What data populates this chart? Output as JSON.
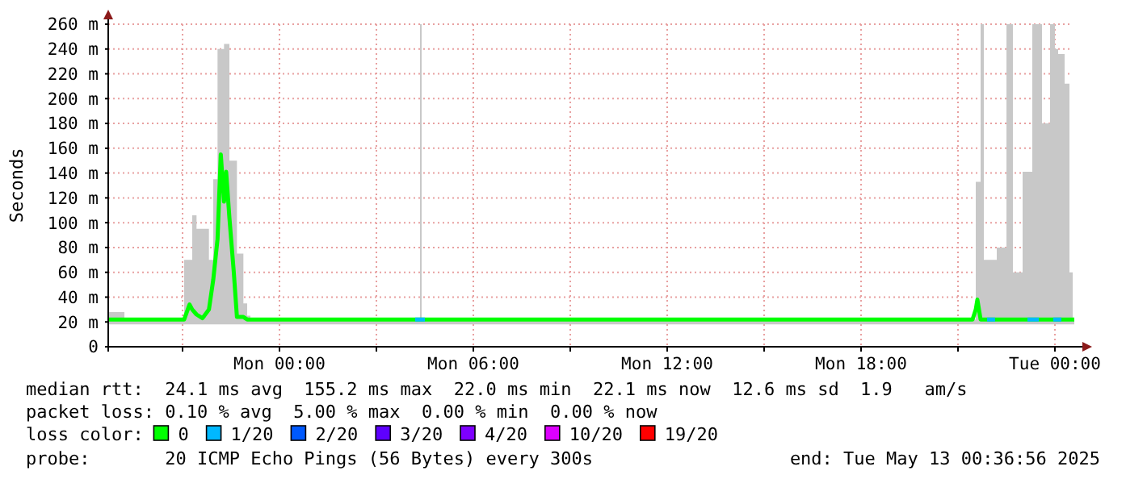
{
  "chart_data": {
    "type": "line",
    "ylabel": "Seconds",
    "xlim": [
      "2025-05-11T18:42",
      "2025-05-13T00:51"
    ],
    "ylim": [
      0,
      260
    ],
    "xticks": [
      {
        "value": "2025-05-11T21:00",
        "label": null
      },
      {
        "value": "2025-05-12T00:00",
        "label": "Mon 00:00"
      },
      {
        "value": "2025-05-12T03:00",
        "label": null
      },
      {
        "value": "2025-05-12T06:00",
        "label": "Mon 06:00"
      },
      {
        "value": "2025-05-12T09:00",
        "label": null
      },
      {
        "value": "2025-05-12T12:00",
        "label": "Mon 12:00"
      },
      {
        "value": "2025-05-12T15:00",
        "label": null
      },
      {
        "value": "2025-05-12T18:00",
        "label": "Mon 18:00"
      },
      {
        "value": "2025-05-12T21:00",
        "label": null
      },
      {
        "value": "2025-05-13T00:00",
        "label": "Tue 00:00"
      }
    ],
    "yticks": [
      {
        "value": 0,
        "label": "0"
      },
      {
        "value": 20,
        "label": "20 m"
      },
      {
        "value": 40,
        "label": "40 m"
      },
      {
        "value": 60,
        "label": "60 m"
      },
      {
        "value": 80,
        "label": "80 m"
      },
      {
        "value": 100,
        "label": "100 m"
      },
      {
        "value": 120,
        "label": "120 m"
      },
      {
        "value": 140,
        "label": "140 m"
      },
      {
        "value": 160,
        "label": "160 m"
      },
      {
        "value": 180,
        "label": "180 m"
      },
      {
        "value": 200,
        "label": "200 m"
      },
      {
        "value": 220,
        "label": "220 m"
      },
      {
        "value": 240,
        "label": "240 m"
      },
      {
        "value": 260,
        "label": "260 m"
      }
    ],
    "grid": true,
    "legend": "bottom",
    "legend_title": "loss color:",
    "series": [
      {
        "name": "0",
        "color": "#00ff00",
        "x": [
          "2025-05-11T18:42",
          "2025-05-11T19:12",
          "2025-05-11T21:00",
          "2025-05-11T21:03",
          "2025-05-11T21:13",
          "2025-05-11T21:18",
          "2025-05-11T21:26",
          "2025-05-11T21:37",
          "2025-05-11T21:49",
          "2025-05-11T21:57",
          "2025-05-11T22:05",
          "2025-05-11T22:11",
          "2025-05-11T22:17",
          "2025-05-11T22:21",
          "2025-05-11T22:27",
          "2025-05-11T22:35",
          "2025-05-11T22:41",
          "2025-05-11T22:53",
          "2025-05-11T23:00",
          "2025-05-11T23:06",
          "2025-05-12T04:18",
          "2025-05-12T04:21",
          "2025-05-12T04:24",
          "2025-05-12T21:27",
          "2025-05-12T21:33",
          "2025-05-12T21:36",
          "2025-05-12T21:42",
          "2025-05-12T21:48",
          "2025-05-12T22:12",
          "2025-05-12T22:30",
          "2025-05-12T22:42",
          "2025-05-12T23:00",
          "2025-05-12T23:18",
          "2025-05-12T23:36",
          "2025-05-12T23:51",
          "2025-05-13T00:00",
          "2025-05-13T00:06",
          "2025-05-13T00:18",
          "2025-05-13T00:27",
          "2025-05-13T00:33",
          "2025-05-13T00:36"
        ],
        "values": [
          22,
          22,
          22,
          22,
          34,
          30,
          26,
          23,
          30,
          54,
          87,
          155,
          117,
          141,
          104,
          61,
          24,
          24,
          22,
          22,
          22,
          22,
          22,
          22,
          30,
          38,
          22,
          22,
          22,
          22,
          22,
          22,
          22,
          22,
          22,
          22,
          22,
          22,
          22,
          22,
          22
        ],
        "upper": [
          28,
          22,
          22,
          70,
          70,
          106,
          95,
          95,
          70,
          135,
          240,
          240,
          244,
          244,
          150,
          150,
          75,
          35,
          25,
          22,
          22,
          260,
          22,
          22,
          133,
          133,
          260,
          70,
          80,
          260,
          60,
          141,
          260,
          180,
          260,
          240,
          236,
          212,
          60,
          22,
          22
        ],
        "lower": [
          18,
          18,
          18,
          18,
          18,
          18,
          18,
          18,
          18,
          18,
          18,
          18,
          18,
          18,
          18,
          18,
          18,
          18,
          18,
          18,
          18,
          18,
          18,
          18,
          18,
          18,
          18,
          18,
          18,
          18,
          18,
          18,
          18,
          18,
          18,
          18,
          18,
          18,
          18,
          18,
          18
        ]
      },
      {
        "name": "1/20",
        "color": "#00b8ff",
        "x": [
          "2025-05-12T04:12",
          "2025-05-12T04:30",
          "2025-05-12T04:36",
          "2025-05-12T21:54",
          "2025-05-12T22:09",
          "2025-05-12T22:15",
          "2025-05-12T23:09",
          "2025-05-12T23:30",
          "2025-05-12T23:36",
          "2025-05-12T23:57",
          "2025-05-13T00:12"
        ],
        "values": [
          22,
          22,
          null,
          22,
          22,
          null,
          22,
          22,
          null,
          22,
          22
        ]
      },
      {
        "name": "2/20",
        "color": "#0059ff"
      },
      {
        "name": "3/20",
        "color": "#5e00ff"
      },
      {
        "name": "4/20",
        "color": "#7e00ff"
      },
      {
        "name": "10/20",
        "color": "#dd00ff"
      },
      {
        "name": "19/20",
        "color": "#ff0000"
      }
    ],
    "annotations": [
      "median rtt:  24.1 ms avg  155.2 ms max  22.0 ms min  22.1 ms now  12.6 ms sd  1.9   am/s",
      "packet loss: 0.10 % avg  5.00 % max  0.00 % min  0.00 % now",
      "probe:       20 ICMP Echo Pings (56 Bytes) every 300s",
      "end: Tue May 13 00:36:56 2025"
    ]
  }
}
